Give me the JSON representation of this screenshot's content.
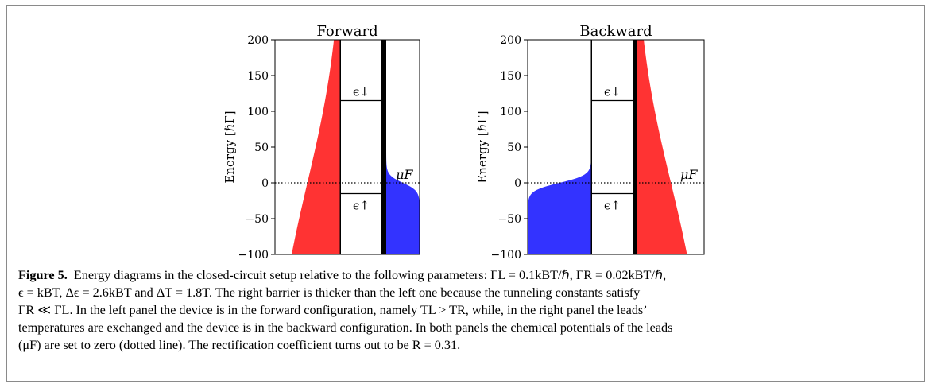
{
  "figure": {
    "panels": [
      {
        "title": "Forward",
        "left_lead_color": "#ff3333",
        "right_lead_color": "#3333ff",
        "level_up_label": "ϵ↓",
        "level_down_label": "ϵ↑",
        "mu_label": "μF"
      },
      {
        "title": "Backward",
        "left_lead_color": "#3333ff",
        "right_lead_color": "#ff3333",
        "level_up_label": "ϵ↓",
        "level_down_label": "ϵ↑",
        "mu_label": "μF"
      }
    ],
    "ylabel": "Energy [ℏΓ]"
  },
  "caption": {
    "label": "Figure 5.",
    "lines": [
      "Energy diagrams in the closed-circuit setup relative to the following parameters: ΓL = 0.1kBT/ℏ, ΓR = 0.02kBT/ℏ,",
      "ϵ = kBT, Δϵ = 2.6kBT and ΔT = 1.8T. The right barrier is thicker than the left one because the tunneling constants satisfy",
      "ΓR ≪ ΓL. In the left panel the device is in the forward configuration, namely TL > TR, while, in the right panel the leads’",
      "temperatures are exchanged and the device is in the backward configuration. In both panels the chemical potentials of the leads",
      "(μF) are set to zero (dotted line). The rectification coefficient turns out to be R = 0.31."
    ]
  },
  "chart_data": [
    {
      "type": "area",
      "title": "Forward",
      "ylabel": "Energy [ℏΓ]",
      "ylim": [
        -100,
        200
      ],
      "yticks": [
        -100,
        -50,
        0,
        50,
        100,
        150,
        200
      ],
      "ytick_labels": [
        "−100",
        "−50",
        "0",
        "50",
        "100",
        "150",
        "200"
      ],
      "levels": [
        {
          "name": "ϵ↓",
          "energy": 115
        },
        {
          "name": "ϵ↑",
          "energy": -15
        }
      ],
      "chemical_potential": 0,
      "left_lead": {
        "color": "#ff3333",
        "distribution": "fermi",
        "side": "left"
      },
      "right_lead": {
        "color": "#3333ff",
        "distribution": "fermi",
        "side": "right"
      },
      "grid": false
    },
    {
      "type": "area",
      "title": "Backward",
      "ylabel": "Energy [ℏΓ]",
      "ylim": [
        -100,
        200
      ],
      "yticks": [
        -100,
        -50,
        0,
        50,
        100,
        150,
        200
      ],
      "ytick_labels": [
        "−100",
        "−50",
        "0",
        "50",
        "100",
        "150",
        "200"
      ],
      "levels": [
        {
          "name": "ϵ↓",
          "energy": 115
        },
        {
          "name": "ϵ↑",
          "energy": -15
        }
      ],
      "chemical_potential": 0,
      "left_lead": {
        "color": "#3333ff",
        "distribution": "fermi",
        "side": "left"
      },
      "right_lead": {
        "color": "#ff3333",
        "distribution": "fermi",
        "side": "right"
      },
      "grid": false
    }
  ]
}
